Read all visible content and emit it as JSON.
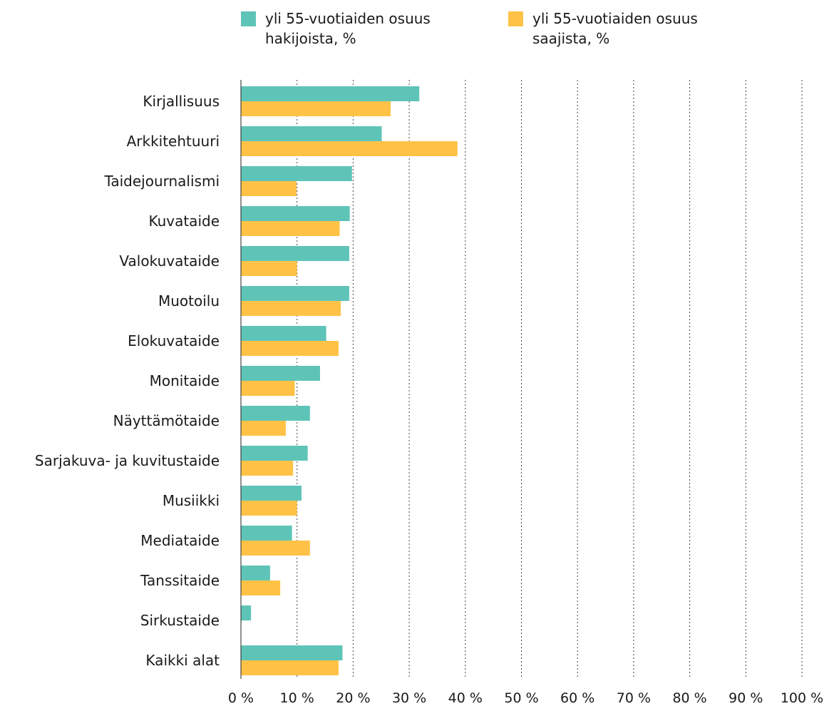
{
  "chart_data": {
    "type": "bar",
    "orientation": "horizontal",
    "title": "",
    "xlabel": "",
    "ylabel": "",
    "xlim": [
      0,
      100
    ],
    "xticks": [
      0,
      10,
      20,
      30,
      40,
      50,
      60,
      70,
      80,
      90,
      100
    ],
    "tick_suffix": " %",
    "grid": "vertical dotted",
    "legend_position": "top",
    "categories": [
      "Kirjallisuus",
      "Arkkitehtuuri",
      "Taidejournalismi",
      "Kuvataide",
      "Valokuvataide",
      "Muotoilu",
      "Elokuvataide",
      "Monitaide",
      "Näyttämötaide",
      "Sarjakuva- ja kuvitustaide",
      "Musiikki",
      "Mediataide",
      "Tanssitaide",
      "Sirkustaide",
      "Kaikki alat"
    ],
    "series": [
      {
        "name": "yli 55-vuotiaiden osuus hakijoista, %",
        "legend_lines": [
          "yli 55-vuotiaiden osuus",
          "hakijoista, %"
        ],
        "color": "#5fc4b8",
        "values": [
          31.8,
          25.1,
          19.8,
          19.4,
          19.3,
          19.3,
          15.2,
          14.1,
          12.3,
          11.9,
          10.8,
          9.1,
          5.2,
          1.8,
          18.1
        ]
      },
      {
        "name": "yli 55-vuotiaiden osuus saajista, %",
        "legend_lines": [
          "yli 55-vuotiaiden osuus",
          "saajista, %"
        ],
        "color": "#ffc247",
        "values": [
          26.7,
          38.6,
          9.9,
          17.6,
          10.0,
          17.8,
          17.4,
          9.6,
          8.0,
          9.3,
          10.0,
          12.3,
          7.0,
          0,
          17.4
        ]
      }
    ]
  }
}
